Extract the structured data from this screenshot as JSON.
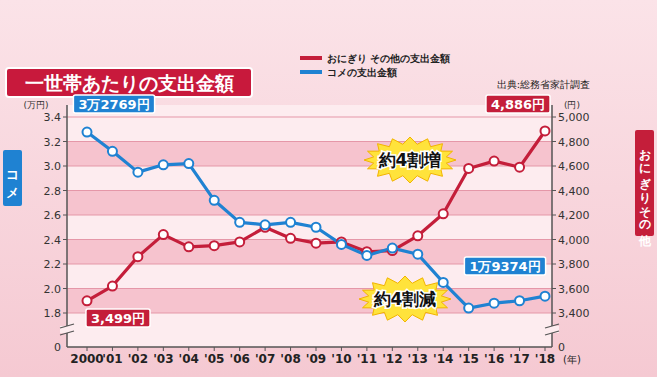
{
  "chart_data": {
    "type": "line",
    "title": "一世帯あたりの支出金額",
    "source": "出典:総務省家計調査",
    "categories": [
      "2000",
      "'01",
      "'02",
      "'03",
      "'04",
      "'05",
      "'06",
      "'07",
      "'08",
      "'09",
      "'10",
      "'11",
      "'12",
      "'13",
      "'14",
      "'15",
      "'16",
      "'17",
      "'18"
    ],
    "xunit": "(年)",
    "ylabel": "コメ",
    "yunit": "(万円)",
    "y2label": "おにぎりその他",
    "y2unit": "(円)",
    "ylim": [
      1.8,
      3.4
    ],
    "yticks": [
      1.8,
      {
        "value": 2,
        "label": "2.0"
      },
      2.2,
      2.4,
      2.6,
      2.8,
      {
        "value": 3,
        "label": "3.0"
      },
      3.2,
      3.4
    ],
    "y2lim": [
      3400,
      5000
    ],
    "y2ticks": [
      {
        "value": 3400,
        "label": "3,400"
      },
      {
        "value": 3600,
        "label": "3,600"
      },
      {
        "value": 3800,
        "label": "3,800"
      },
      {
        "value": 4000,
        "label": "4,000"
      },
      {
        "value": 4200,
        "label": "4,200"
      },
      {
        "value": 4400,
        "label": "4,400"
      },
      {
        "value": 4600,
        "label": "4,600"
      },
      {
        "value": 4800,
        "label": "4,800"
      },
      {
        "value": 5000,
        "label": "5,000"
      }
    ],
    "series": [
      {
        "name": "おにぎり その他の支出金額",
        "color": "#c41e3a",
        "axis": "y2",
        "marker": "circle",
        "values": [
          3499,
          3620,
          3860,
          4040,
          3940,
          3950,
          3980,
          4100,
          4010,
          3970,
          3980,
          3900,
          3910,
          4030,
          4210,
          4580,
          4640,
          4590,
          4886
        ]
      },
      {
        "name": "コメの支出金額",
        "color": "#1f82d2",
        "axis": "y",
        "marker": "circle",
        "values": [
          3.2769,
          3.12,
          2.95,
          3.01,
          3.02,
          2.72,
          2.54,
          2.52,
          2.54,
          2.5,
          2.36,
          2.27,
          2.33,
          2.28,
          2.05,
          1.84,
          1.88,
          1.9,
          1.9374
        ]
      }
    ],
    "grid": true,
    "legend": "top",
    "annotations": [
      "3万2769円",
      "4,886円",
      "約4割増",
      "1万9374円",
      "約4割減",
      "3,499円",
      "0",
      "0"
    ]
  }
}
